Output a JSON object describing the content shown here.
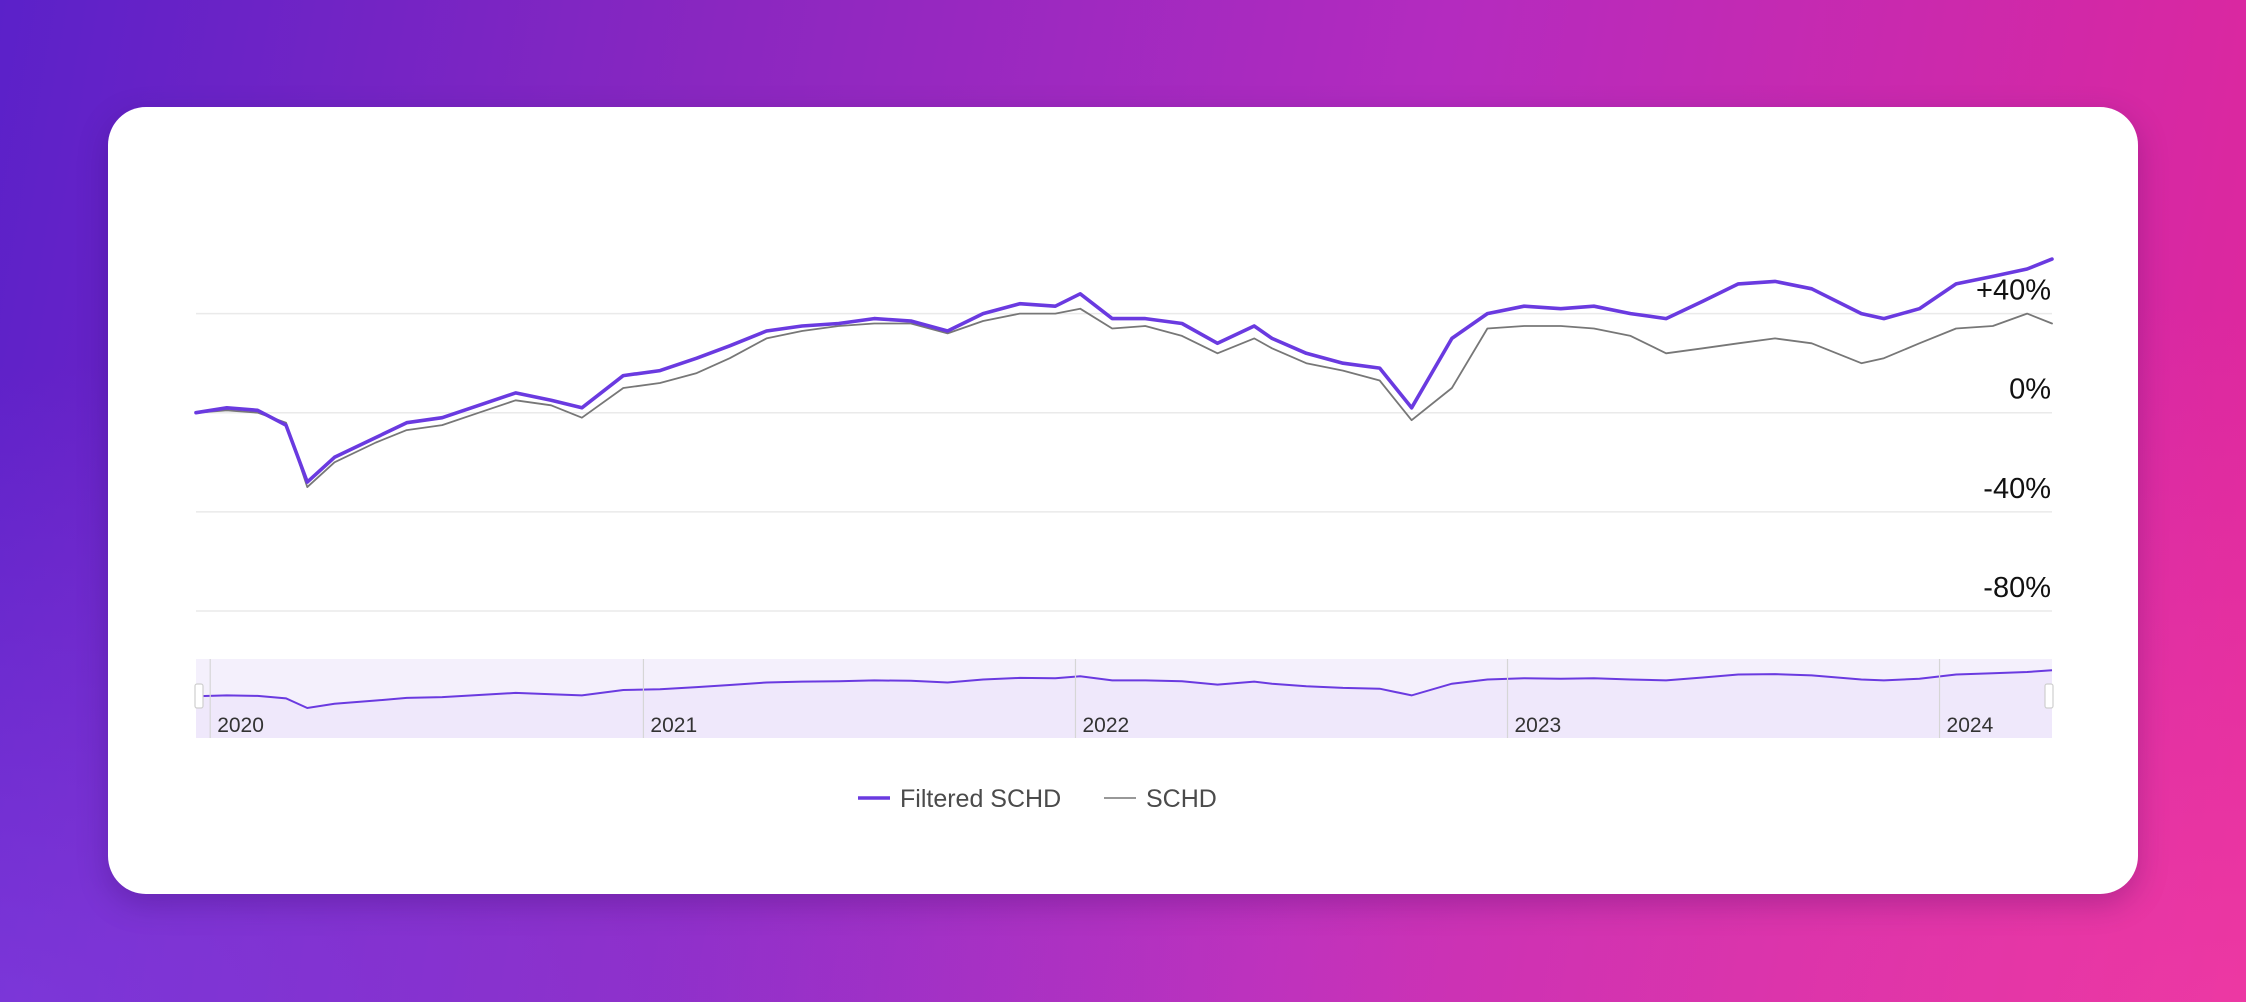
{
  "colors": {
    "filtered": "#6a3ae0",
    "schd": "#777777",
    "grid": "#eaeaea",
    "navigator_fill": "#f4f0fc"
  },
  "chart_data": {
    "type": "line",
    "x_unit": "date",
    "x": [
      "2019-12-20",
      "2020-01-15",
      "2020-02-10",
      "2020-03-05",
      "2020-03-23",
      "2020-04-15",
      "2020-05-20",
      "2020-06-15",
      "2020-07-15",
      "2020-08-15",
      "2020-09-15",
      "2020-10-15",
      "2020-11-10",
      "2020-12-15",
      "2021-01-15",
      "2021-02-15",
      "2021-03-15",
      "2021-04-15",
      "2021-05-15",
      "2021-06-15",
      "2021-07-15",
      "2021-08-15",
      "2021-09-15",
      "2021-10-15",
      "2021-11-15",
      "2021-12-15",
      "2022-01-05",
      "2022-02-01",
      "2022-03-01",
      "2022-04-01",
      "2022-05-01",
      "2022-06-01",
      "2022-06-16",
      "2022-07-15",
      "2022-08-15",
      "2022-09-15",
      "2022-10-12",
      "2022-11-15",
      "2022-12-15",
      "2023-01-15",
      "2023-02-15",
      "2023-03-15",
      "2023-04-15",
      "2023-05-15",
      "2023-06-15",
      "2023-07-15",
      "2023-08-15",
      "2023-09-15",
      "2023-10-27",
      "2023-11-15",
      "2023-12-15",
      "2024-01-15",
      "2024-02-15",
      "2024-03-15",
      "2024-04-05"
    ],
    "series": [
      {
        "name": "Filtered SCHD",
        "color": "#6a3ae0",
        "values": [
          0,
          2,
          1,
          -5,
          -28,
          -18,
          -10,
          -4,
          -2,
          3,
          8,
          5,
          2,
          15,
          17,
          22,
          27,
          33,
          35,
          36,
          38,
          37,
          33,
          40,
          44,
          43,
          48,
          38,
          38,
          36,
          28,
          35,
          30,
          24,
          20,
          18,
          2,
          30,
          40,
          43,
          42,
          43,
          40,
          38,
          45,
          52,
          53,
          50,
          40,
          38,
          42,
          52,
          55,
          58,
          62
        ]
      },
      {
        "name": "SCHD",
        "color": "#777777",
        "values": [
          0,
          1,
          0,
          -4,
          -30,
          -20,
          -12,
          -7,
          -5,
          0,
          5,
          3,
          -2,
          10,
          12,
          16,
          22,
          30,
          33,
          35,
          36,
          36,
          32,
          37,
          40,
          40,
          42,
          34,
          35,
          31,
          24,
          30,
          26,
          20,
          17,
          13,
          -3,
          10,
          34,
          35,
          35,
          34,
          31,
          24,
          26,
          28,
          30,
          28,
          20,
          22,
          28,
          34,
          35,
          40,
          36
        ]
      }
    ],
    "y_ticks": [
      "+40%",
      "0%",
      "-40%",
      "-80%"
    ],
    "y_tick_values": [
      40,
      0,
      -40,
      -80
    ],
    "ylim": [
      -80,
      58
    ],
    "navigator": {
      "labels": [
        "2020",
        "2021",
        "2022",
        "2023",
        "2024"
      ]
    },
    "legend": {
      "position": "bottom-center"
    },
    "grid": true
  }
}
